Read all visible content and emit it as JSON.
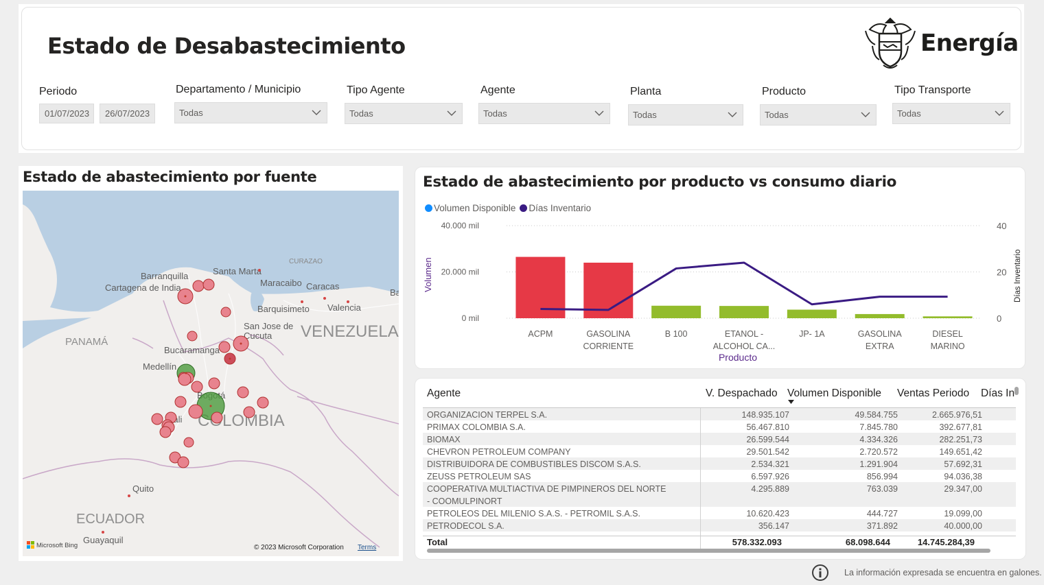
{
  "header": {
    "title": "Estado de Desabastecimiento",
    "logo_text": "Energía"
  },
  "filters": {
    "periodo": {
      "label": "Periodo",
      "start": "01/07/2023",
      "end": "26/07/2023"
    },
    "departamento": {
      "label": "Departamento / Municipio",
      "value": "Todas"
    },
    "tipo_agente": {
      "label": "Tipo Agente",
      "value": "Todas"
    },
    "agente": {
      "label": "Agente",
      "value": "Todas"
    },
    "planta": {
      "label": "Planta",
      "value": "Todas"
    },
    "producto": {
      "label": "Producto",
      "value": "Todas"
    },
    "tipo_transporte": {
      "label": "Tipo Transporte",
      "value": "Todas"
    }
  },
  "map": {
    "title": "Estado de abastecimiento por fuente",
    "labels": {
      "barranquilla": "Barranquilla",
      "santa_marta": "Santa Marta",
      "curazao": "CURAZAO",
      "cartagena": "Cartagena de India",
      "maracaibo": "Maracaibo",
      "caracas": "Caracas",
      "ba": "Ba",
      "barquisimeto": "Barquisimeto",
      "valencia": "Valencia",
      "san_jose": "San Jose de",
      "cucuta": "Cucuta",
      "venezuela": "VENEZUELA",
      "panama": "PANAMÁ",
      "bucaramanga": "Bucaramanga",
      "medellin": "Medellín",
      "bogota": "Bogotá",
      "colombia": "COLOMBIA",
      "cali": "Cali",
      "quito": "Quito",
      "ecuador": "ECUADOR",
      "guayaquil": "Guayaquil"
    },
    "bing_label": "Microsoft Bing",
    "copyright": "© 2023 Microsoft Corporation",
    "terms": "Terms",
    "colors": {
      "red_fill": "#e8838e",
      "red_stroke": "#c0392b",
      "green_fill": "#4c9a3c",
      "water": "#b9cfe3",
      "land": "#f1efed"
    }
  },
  "chart": {
    "title": "Estado de abastecimiento por producto vs consumo diario",
    "legend": [
      "Volumen Disponible",
      "Días Inventario"
    ],
    "legend_colors": [
      "#118dff",
      "#3a1b83"
    ],
    "y_left_label": "Volumen",
    "y_right_label": "Días Inventario",
    "x_label": "Producto",
    "y_left_ticks": [
      "40.000 mil",
      "20.000 mil",
      "0 mil"
    ],
    "y_right_ticks": [
      "40",
      "20",
      "0"
    ],
    "categories": [
      [
        "ACPM"
      ],
      [
        "GASOLINA",
        "CORRIENTE"
      ],
      [
        "B 100"
      ],
      [
        "ETANOL -",
        "ALCOHOL CA..."
      ],
      [
        "JP- 1A"
      ],
      [
        "GASOLINA",
        "EXTRA"
      ],
      [
        "DIESEL",
        "MARINO"
      ]
    ]
  },
  "chart_data": {
    "type": "bar",
    "title": "Estado de abastecimiento por producto vs consumo diario",
    "xlabel": "Producto",
    "ylabel": "Volumen",
    "y2label": "Días Inventario",
    "categories": [
      "ACPM",
      "GASOLINA CORRIENTE",
      "B 100",
      "ETANOL - ALCOHOL CA...",
      "JP- 1A",
      "GASOLINA EXTRA",
      "DIESEL MARINO"
    ],
    "ylim": [
      0,
      40000
    ],
    "y2lim": [
      0,
      40
    ],
    "series": [
      {
        "name": "Volumen Disponible",
        "axis": "left",
        "type": "bar",
        "unit": "mil",
        "values": [
          26500,
          24000,
          5400,
          5300,
          3700,
          1800,
          800
        ],
        "colors": [
          "#e63946",
          "#e63946",
          "#93bc2c",
          "#93bc2c",
          "#93bc2c",
          "#93bc2c",
          "#93bc2c"
        ]
      },
      {
        "name": "Días Inventario",
        "axis": "right",
        "type": "line",
        "values": [
          4,
          3.6,
          21.5,
          24,
          6,
          9.3,
          9.3
        ],
        "color": "#3a1b83"
      }
    ],
    "legend_position": "top-left",
    "grid": true
  },
  "table": {
    "headers": [
      "Agente",
      "V. Despachado",
      "Volumen Disponible",
      "Ventas Periodo",
      "Días In"
    ],
    "sorted_column": "Volumen Disponible",
    "rows": [
      {
        "agente": "ORGANIZACION TERPEL S.A.",
        "despachado": "148.935.107",
        "disponible": "49.584.755",
        "ventas": "2.665.976,51"
      },
      {
        "agente": "PRIMAX COLOMBIA S.A.",
        "despachado": "56.467.810",
        "disponible": "7.845.780",
        "ventas": "392.677,81"
      },
      {
        "agente": "BIOMAX",
        "despachado": "26.599.544",
        "disponible": "4.334.326",
        "ventas": "282.251,73"
      },
      {
        "agente": "CHEVRON PETROLEUM COMPANY",
        "despachado": "29.501.542",
        "disponible": "2.720.572",
        "ventas": "149.651,42"
      },
      {
        "agente": "DISTRIBUIDORA DE COMBUSTIBLES DISCOM S.A.S.",
        "despachado": "2.534.321",
        "disponible": "1.291.904",
        "ventas": "57.692,31"
      },
      {
        "agente": "ZEUSS PETROLEUM SAS",
        "despachado": "6.597.926",
        "disponible": "856.994",
        "ventas": "94.036,38"
      },
      {
        "agente": "COOPERATIVA MULTIACTIVA DE PIMPINEROS DEL NORTE - COOMULPINORT",
        "despachado": "4.295.889",
        "disponible": "763.039",
        "ventas": "29.347,00"
      },
      {
        "agente": "PETROLEOS DEL MILENIO S.A.S. - PETROMIL S.A.S.",
        "despachado": "10.620.423",
        "disponible": "444.727",
        "ventas": "19.099,00"
      },
      {
        "agente": "PETRODECOL S.A.",
        "despachado": "356.147",
        "disponible": "371.892",
        "ventas": "40.000,00"
      }
    ],
    "total": {
      "label": "Total",
      "despachado": "578.332.093",
      "disponible": "68.098.644",
      "ventas": "14.745.284,39"
    }
  },
  "footer": {
    "note": "La información expresada se encuentra en galones."
  }
}
